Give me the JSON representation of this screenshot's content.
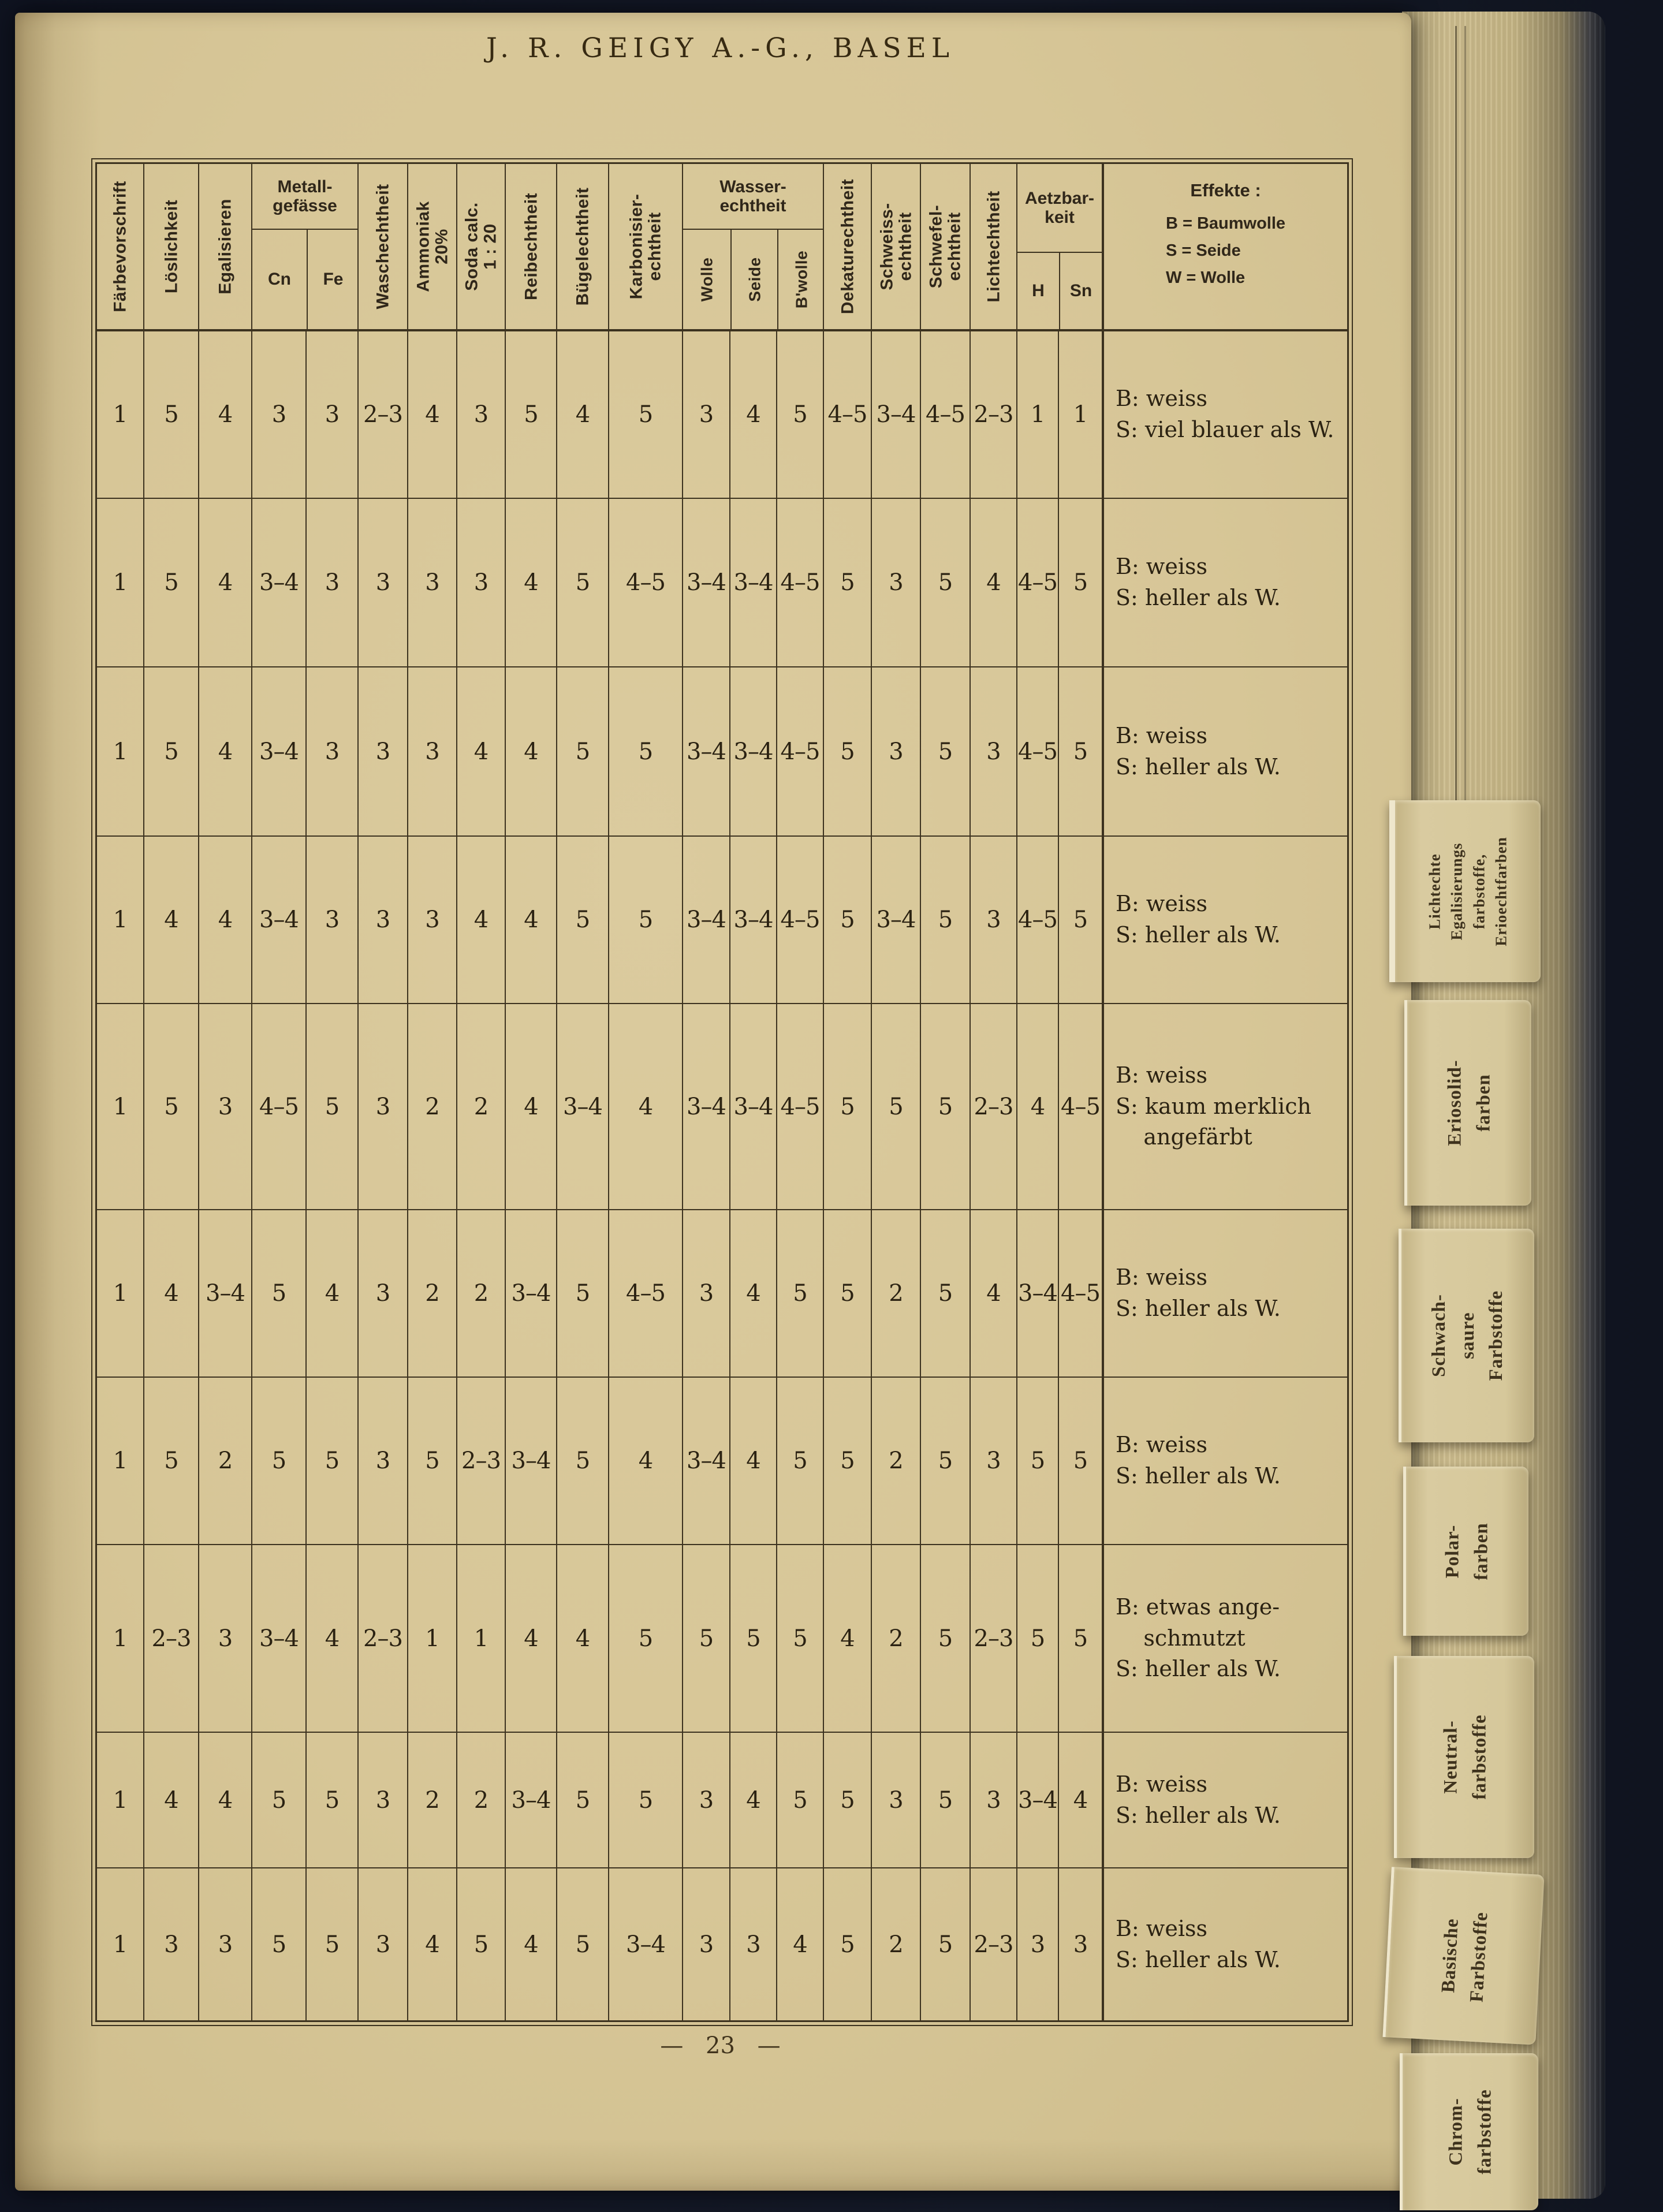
{
  "page": {
    "title": "J. R. GEIGY A.-G., BASEL",
    "page_number": "— 23 —"
  },
  "table": {
    "headers": {
      "faerbevorschrift": "Färbevorschrift",
      "loeslichkeit": "Löslichkeit",
      "egalisieren": "Egalisieren",
      "metall_group": "Metall-\ngefässe",
      "cn": "Cn",
      "fe": "Fe",
      "waschechtheit": "Waschechtheit",
      "ammoniak": "Ammoniak\n20%",
      "soda": "Soda calc.\n1 : 20",
      "reibechtheit": "Reibechtheit",
      "buegelechtheit": "Bügelechtheit",
      "karbonisier": "Karbonisier-\nechtheit",
      "wasser_group": "Wasser-\nechtheit",
      "wolle": "Wolle",
      "seide": "Seide",
      "bwolle": "B'wolle",
      "dekatur": "Dekaturechtheit",
      "schweiss": "Schweiss-\nechtheit",
      "schwefel": "Schwefel-\nechtheit",
      "licht": "Lichtechtheit",
      "aetzbar_group": "Aetzbar-\nkeit",
      "h": "H",
      "sn": "Sn",
      "effekte_title": "Effekte :",
      "effekte_legend": "B = Baumwolle\nS = Seide\nW = Wolle"
    },
    "rows": [
      {
        "values": [
          "1",
          "5",
          "4",
          "3",
          "3",
          "2–3",
          "4",
          "3",
          "5",
          "4",
          "5",
          "3",
          "4",
          "5",
          "4–5",
          "3–4",
          "4–5",
          "2–3",
          "1",
          "1"
        ],
        "effekte": [
          "B: weiss",
          "S: viel blauer als W."
        ]
      },
      {
        "values": [
          "1",
          "5",
          "4",
          "3–4",
          "3",
          "3",
          "3",
          "3",
          "4",
          "5",
          "4–5",
          "3–4",
          "3–4",
          "4–5",
          "5",
          "3",
          "5",
          "4",
          "4–5",
          "5"
        ],
        "effekte": [
          "B: weiss",
          "S: heller als W."
        ]
      },
      {
        "values": [
          "1",
          "5",
          "4",
          "3–4",
          "3",
          "3",
          "3",
          "4",
          "4",
          "5",
          "5",
          "3–4",
          "3–4",
          "4–5",
          "5",
          "3",
          "5",
          "3",
          "4–5",
          "5"
        ],
        "effekte": [
          "B: weiss",
          "S: heller als W."
        ]
      },
      {
        "values": [
          "1",
          "4",
          "4",
          "3–4",
          "3",
          "3",
          "3",
          "4",
          "4",
          "5",
          "5",
          "3–4",
          "3–4",
          "4–5",
          "5",
          "3–4",
          "5",
          "3",
          "4–5",
          "5"
        ],
        "effekte": [
          "B: weiss",
          "S: heller als W."
        ]
      },
      {
        "values": [
          "1",
          "5",
          "3",
          "4–5",
          "5",
          "3",
          "2",
          "2",
          "4",
          "3–4",
          "4",
          "3–4",
          "3–4",
          "4–5",
          "5",
          "5",
          "5",
          "2–3",
          "4",
          "4–5"
        ],
        "effekte": [
          "B: weiss",
          "S: kaum merklich",
          "    angefärbt"
        ]
      },
      {
        "values": [
          "1",
          "4",
          "3–4",
          "5",
          "4",
          "3",
          "2",
          "2",
          "3–4",
          "5",
          "4–5",
          "3",
          "4",
          "5",
          "5",
          "2",
          "5",
          "4",
          "3–4",
          "4–5"
        ],
        "effekte": [
          "B: weiss",
          "S: heller als W."
        ]
      },
      {
        "values": [
          "1",
          "5",
          "2",
          "5",
          "5",
          "3",
          "5",
          "2–3",
          "3–4",
          "5",
          "4",
          "3–4",
          "4",
          "5",
          "5",
          "2",
          "5",
          "3",
          "5",
          "5"
        ],
        "effekte": [
          "B: weiss",
          "S: heller als W."
        ]
      },
      {
        "values": [
          "1",
          "2–3",
          "3",
          "3–4",
          "4",
          "2–3",
          "1",
          "1",
          "4",
          "4",
          "5",
          "5",
          "5",
          "5",
          "4",
          "2",
          "5",
          "2–3",
          "5",
          "5"
        ],
        "effekte": [
          "B: etwas ange-",
          "    schmutzt",
          "S: heller als W."
        ]
      },
      {
        "values": [
          "1",
          "4",
          "4",
          "5",
          "5",
          "3",
          "2",
          "2",
          "3–4",
          "5",
          "5",
          "3",
          "4",
          "5",
          "5",
          "3",
          "5",
          "3",
          "3–4",
          "4"
        ],
        "effekte": [
          "B: weiss",
          "S: heller als W."
        ]
      },
      {
        "values": [
          "1",
          "3",
          "3",
          "5",
          "5",
          "3",
          "4",
          "5",
          "4",
          "5",
          "3–4",
          "3",
          "3",
          "4",
          "5",
          "2",
          "5",
          "2–3",
          "3",
          "3"
        ],
        "effekte": [
          "B: weiss",
          "S: heller als W."
        ]
      }
    ]
  },
  "tabs": [
    {
      "label": "Lichtechte\nEgalisierungs\nfarbstoffe,\nErioechtfarben"
    },
    {
      "label": "Eriosolid-\nfarben"
    },
    {
      "label": "Schwach-\nsaure\nFarbstoffe"
    },
    {
      "label": "Polar-\nfarben"
    },
    {
      "label": "Neutral-\nfarbstoffe"
    },
    {
      "label": "Basische\nFarbstoffe"
    },
    {
      "label": "Chrom-\nfarbstoffe"
    }
  ]
}
